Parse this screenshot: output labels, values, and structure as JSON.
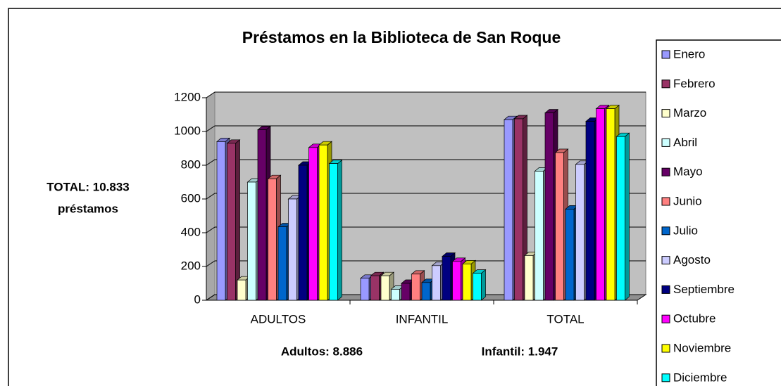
{
  "chart_data": {
    "type": "bar3d",
    "title": "Préstamos en la Biblioteca de San Roque",
    "annotations": {
      "side": [
        "TOTAL: 10.833",
        "préstamos"
      ],
      "adultos": "Adultos: 8.886",
      "infantil": "Infantil: 1.947"
    },
    "categories": [
      "ADULTOS",
      "INFANTIL",
      "TOTAL"
    ],
    "ylim": [
      0,
      1200
    ],
    "yticks": [
      0,
      200,
      400,
      600,
      800,
      1000,
      1200
    ],
    "grid": true,
    "legend": "right",
    "series": [
      {
        "name": "Enero",
        "color": "#9999FF",
        "values": [
          940,
          130,
          1070
        ]
      },
      {
        "name": "Febrero",
        "color": "#993366",
        "values": [
          930,
          145,
          1075
        ]
      },
      {
        "name": "Marzo",
        "color": "#FFFFCC",
        "values": [
          120,
          145,
          265
        ]
      },
      {
        "name": "Abril",
        "color": "#CCFFFF",
        "values": [
          700,
          65,
          765
        ]
      },
      {
        "name": "Mayo",
        "color": "#660066",
        "values": [
          1010,
          100,
          1110
        ]
      },
      {
        "name": "Junio",
        "color": "#FF8080",
        "values": [
          720,
          155,
          875
        ]
      },
      {
        "name": "Julio",
        "color": "#0066CC",
        "values": [
          435,
          105,
          540
        ]
      },
      {
        "name": "Agosto",
        "color": "#CCCCFF",
        "values": [
          600,
          205,
          805
        ]
      },
      {
        "name": "Septiembre",
        "color": "#000080",
        "values": [
          800,
          260,
          1060
        ]
      },
      {
        "name": "Octubre",
        "color": "#FF00FF",
        "values": [
          905,
          230,
          1135
        ]
      },
      {
        "name": "Noviembre",
        "color": "#FFFF00",
        "values": [
          920,
          215,
          1135
        ]
      },
      {
        "name": "Diciembre",
        "color": "#00FFFF",
        "values": [
          810,
          160,
          970
        ]
      }
    ]
  }
}
